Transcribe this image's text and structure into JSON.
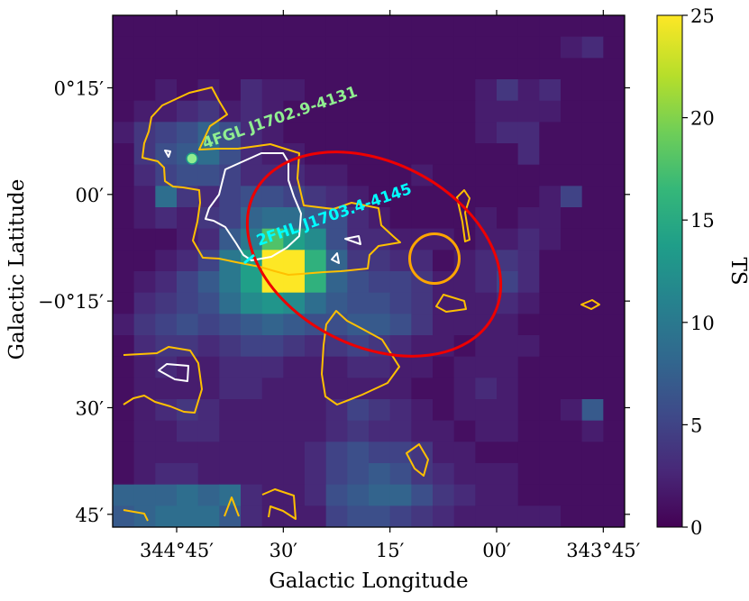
{
  "chart_data": {
    "type": "heatmap",
    "xlabel": "Galactic Longitude",
    "ylabel": "Galactic Latitude",
    "x_ticks": [
      {
        "value": 344.75,
        "label": "344°45′"
      },
      {
        "value": 344.5,
        "label": "30′"
      },
      {
        "value": 344.25,
        "label": "15′"
      },
      {
        "value": 344.0,
        "label": "00′"
      },
      {
        "value": 343.75,
        "label": "343°45′"
      }
    ],
    "y_ticks": [
      {
        "value": 0.25,
        "label": "0°15′"
      },
      {
        "value": 0.0,
        "label": "00′"
      },
      {
        "value": -0.25,
        "label": "−0°15′"
      },
      {
        "value": -0.5,
        "label": "30′"
      },
      {
        "value": -0.75,
        "label": "45′"
      }
    ],
    "xlim": [
      344.9,
      343.7
    ],
    "ylim": [
      -0.78,
      0.42
    ],
    "colorbar": {
      "label": "TS",
      "range": [
        0,
        25
      ],
      "ticks": [
        0,
        5,
        10,
        15,
        20,
        25
      ],
      "colormap": [
        "#440154",
        "#482878",
        "#3e4a89",
        "#31688e",
        "#26828e",
        "#1f9e89",
        "#35b779",
        "#6ece58",
        "#b5de2b",
        "#fde725"
      ]
    },
    "grid": {
      "nx": 24,
      "ny": 24,
      "values": [
        [
          1,
          1,
          1,
          1,
          1,
          1,
          1,
          1,
          1,
          1,
          1,
          1,
          1,
          1,
          1,
          1,
          1,
          1,
          1,
          1,
          1,
          1,
          1,
          1
        ],
        [
          1,
          1,
          1,
          1,
          1,
          1,
          1,
          1,
          1,
          1,
          1,
          1,
          1,
          1,
          1,
          1,
          1,
          1,
          1,
          1,
          1,
          2,
          3,
          1
        ],
        [
          1,
          1,
          1,
          1,
          1,
          1,
          1,
          1,
          1,
          1,
          1,
          1,
          1,
          1,
          1,
          1,
          1,
          1,
          1,
          1,
          1,
          1,
          1,
          1
        ],
        [
          1,
          1,
          2,
          1,
          2,
          1,
          3,
          2,
          2,
          1,
          1,
          1,
          1,
          1,
          1,
          1,
          1,
          2,
          4,
          2,
          3,
          1,
          1,
          1
        ],
        [
          1,
          2,
          2,
          3,
          4,
          2,
          3,
          2,
          1,
          1,
          1,
          1,
          1,
          1,
          1,
          1,
          1,
          2,
          2,
          2,
          2,
          1,
          1,
          1
        ],
        [
          2,
          4,
          5,
          6,
          8,
          6,
          3,
          2,
          1,
          1,
          1,
          1,
          1,
          1,
          1,
          1,
          1,
          2,
          3,
          3,
          1,
          1,
          1,
          1
        ],
        [
          1,
          4,
          6,
          7,
          9,
          6,
          3,
          2,
          2,
          1,
          1,
          1,
          1,
          1,
          1,
          1,
          1,
          1,
          1,
          3,
          1,
          1,
          1,
          1
        ],
        [
          1,
          3,
          5,
          6,
          6,
          5,
          3,
          3,
          3,
          2,
          2,
          1,
          1,
          1,
          2,
          1,
          1,
          1,
          1,
          1,
          1,
          1,
          1,
          1
        ],
        [
          1,
          2,
          9,
          4,
          3,
          5,
          6,
          6,
          5,
          4,
          3,
          2,
          1,
          1,
          1,
          1,
          1,
          1,
          1,
          1,
          2,
          5,
          1,
          1
        ],
        [
          1,
          2,
          3,
          2,
          4,
          5,
          8,
          9,
          9,
          7,
          6,
          3,
          2,
          1,
          1,
          1,
          1,
          2,
          1,
          2,
          2,
          1,
          1,
          1
        ],
        [
          1,
          1,
          1,
          2,
          3,
          7,
          10,
          18,
          14,
          12,
          6,
          3,
          3,
          2,
          2,
          2,
          1,
          2,
          2,
          3,
          2,
          1,
          1,
          1
        ],
        [
          1,
          1,
          2,
          3,
          5,
          10,
          14,
          25,
          25,
          16,
          8,
          4,
          4,
          3,
          3,
          1,
          2,
          3,
          4,
          3,
          1,
          1,
          1,
          1
        ],
        [
          1,
          2,
          3,
          5,
          7,
          10,
          14,
          25,
          25,
          16,
          8,
          6,
          5,
          5,
          4,
          2,
          2,
          3,
          5,
          3,
          1,
          1,
          1,
          1
        ],
        [
          1,
          3,
          4,
          5,
          6,
          9,
          12,
          13,
          12,
          9,
          7,
          6,
          6,
          5,
          4,
          2,
          2,
          2,
          3,
          2,
          1,
          1,
          1,
          1
        ],
        [
          2,
          4,
          5,
          6,
          5,
          6,
          7,
          8,
          7,
          6,
          6,
          7,
          7,
          6,
          4,
          2,
          2,
          2,
          2,
          1,
          1,
          1,
          1,
          1
        ],
        [
          1,
          3,
          4,
          4,
          3,
          4,
          5,
          5,
          4,
          3,
          4,
          5,
          4,
          3,
          2,
          2,
          1,
          2,
          2,
          2,
          1,
          1,
          1,
          1
        ],
        [
          1,
          2,
          3,
          2,
          2,
          3,
          3,
          3,
          2,
          2,
          2,
          3,
          3,
          2,
          2,
          1,
          2,
          2,
          2,
          1,
          1,
          1,
          1,
          1
        ],
        [
          1,
          2,
          2,
          2,
          2,
          3,
          3,
          2,
          2,
          2,
          2,
          2,
          2,
          2,
          1,
          1,
          2,
          3,
          2,
          1,
          1,
          1,
          1,
          1
        ],
        [
          1,
          2,
          3,
          4,
          3,
          2,
          2,
          2,
          2,
          2,
          3,
          5,
          4,
          3,
          2,
          1,
          2,
          2,
          2,
          1,
          1,
          2,
          7,
          1
        ],
        [
          1,
          2,
          2,
          3,
          3,
          2,
          2,
          2,
          2,
          2,
          3,
          4,
          3,
          3,
          2,
          2,
          1,
          2,
          2,
          1,
          1,
          1,
          2,
          1
        ],
        [
          1,
          2,
          2,
          2,
          2,
          2,
          2,
          2,
          2,
          3,
          5,
          6,
          5,
          5,
          4,
          2,
          2,
          1,
          1,
          1,
          1,
          1,
          1,
          1
        ],
        [
          1,
          2,
          3,
          3,
          2,
          2,
          2,
          2,
          2,
          3,
          5,
          6,
          7,
          6,
          4,
          3,
          2,
          2,
          2,
          1,
          1,
          1,
          1,
          1
        ],
        [
          8,
          8,
          8,
          9,
          8,
          9,
          3,
          2,
          2,
          3,
          6,
          7,
          8,
          8,
          6,
          4,
          3,
          2,
          2,
          1,
          1,
          1,
          1,
          1
        ],
        [
          7,
          8,
          9,
          9,
          9,
          7,
          3,
          2,
          2,
          2,
          5,
          6,
          6,
          5,
          4,
          3,
          2,
          2,
          2,
          2,
          2,
          1,
          1,
          1
        ]
      ]
    },
    "sources": [
      {
        "name": "4FGL J1702.9-4131",
        "color": "#90ee90"
      },
      {
        "name": "2FHL J1703.4-4145",
        "color": "#00ffff"
      }
    ],
    "contours": [
      {
        "level_color": "#ffc000",
        "description": "outer TS contour"
      },
      {
        "level_color": "#ffffff",
        "description": "inner TS contour"
      }
    ],
    "ellipse_color": "#ee0000",
    "circle_color": "#ffa500"
  }
}
